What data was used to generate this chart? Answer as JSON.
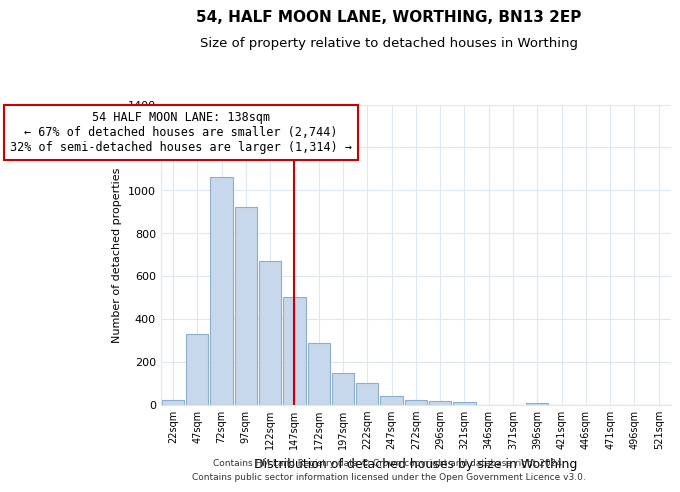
{
  "title": "54, HALF MOON LANE, WORTHING, BN13 2EP",
  "subtitle": "Size of property relative to detached houses in Worthing",
  "xlabel": "Distribution of detached houses by size in Worthing",
  "ylabel": "Number of detached properties",
  "bar_color": "#c8d8ec",
  "bar_edge_color": "#8ab0cc",
  "categories": [
    "22sqm",
    "47sqm",
    "72sqm",
    "97sqm",
    "122sqm",
    "147sqm",
    "172sqm",
    "197sqm",
    "222sqm",
    "247sqm",
    "272sqm",
    "296sqm",
    "321sqm",
    "346sqm",
    "371sqm",
    "396sqm",
    "421sqm",
    "446sqm",
    "471sqm",
    "496sqm",
    "521sqm"
  ],
  "values": [
    20,
    330,
    1060,
    920,
    670,
    500,
    285,
    148,
    100,
    40,
    20,
    15,
    10,
    0,
    0,
    5,
    0,
    0,
    0,
    0,
    0
  ],
  "ylim": [
    0,
    1400
  ],
  "yticks": [
    0,
    200,
    400,
    600,
    800,
    1000,
    1200,
    1400
  ],
  "vline_x_index": 5,
  "vline_color": "#cc0000",
  "annotation_line1": "54 HALF MOON LANE: 138sqm",
  "annotation_line2": "← 67% of detached houses are smaller (2,744)",
  "annotation_line3": "32% of semi-detached houses are larger (1,314) →",
  "footer_line1": "Contains HM Land Registry data © Crown copyright and database right 2024.",
  "footer_line2": "Contains public sector information licensed under the Open Government Licence v3.0.",
  "background_color": "#ffffff",
  "grid_color": "#dde8f0",
  "title_fontsize": 11,
  "subtitle_fontsize": 9.5
}
